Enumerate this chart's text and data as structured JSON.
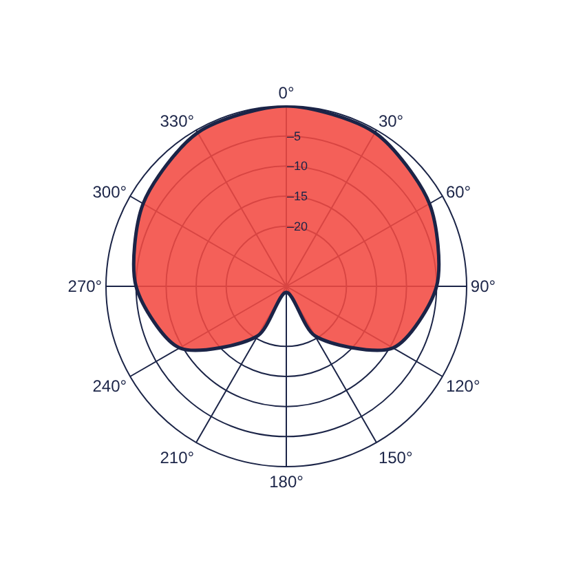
{
  "chart_data": {
    "type": "radar",
    "categories": [
      "0°",
      "30°",
      "60°",
      "90°",
      "120°",
      "150°",
      "180°",
      "210°",
      "240°",
      "270°",
      "300°",
      "330°"
    ],
    "series": [
      {
        "color": "#f24a42",
        "values": [
          0,
          -0.5,
          -2.5,
          -5,
          -9.5,
          -20.5,
          -29,
          -20.5,
          -9.5,
          -5,
          -2.5,
          -0.5
        ]
      }
    ],
    "ylim": [
      -30,
      0
    ],
    "yticks": [
      {
        "value": -20,
        "label": "–20"
      },
      {
        "value": -15,
        "label": "–15"
      },
      {
        "value": -10,
        "label": "–10"
      },
      {
        "value": -5,
        "label": "–5"
      }
    ],
    "grid": true,
    "marker": "none",
    "line_style": "solid"
  }
}
